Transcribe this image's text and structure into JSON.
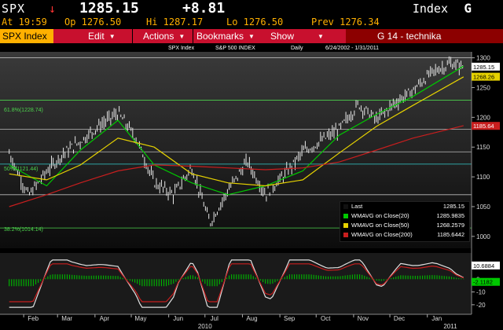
{
  "header": {
    "ticker": "SPX",
    "arrow": "↓",
    "last": "1285.15",
    "change": "+8.81",
    "index_label": "Index",
    "index_letter": "G",
    "time": "At 19:59",
    "open": "Op 1276.50",
    "high": "Hi 1287.17",
    "low": "Lo 1276.50",
    "prev": "Prev 1276.34"
  },
  "toolbar": {
    "security": "SPX Index",
    "edit": "Edit",
    "actions": "Actions",
    "bookmarks": "Bookmarks",
    "show": "Show",
    "title": "G 14 - technika"
  },
  "chart_header": {
    "name": "SPX Index",
    "desc": "S&P 500 INDEX",
    "freq": "Daily",
    "range": "6/24/2002 - 1/31/2011"
  },
  "fib": {
    "f618": "61.8%(1228.74)",
    "f50": "50%(1121.44)",
    "f382": "38.2%(1014.14)"
  },
  "legend": {
    "last_label": "Last",
    "last_value": "1285.15",
    "w20_label": "WMAVG on Close(20)",
    "w20_value": "1285.9835",
    "w50_label": "WMAVG on Close(50)",
    "w50_value": "1268.2579",
    "w200_label": "WMAVG on Close(200)",
    "w200_value": "1185.6442"
  },
  "colors": {
    "ma20": "#00c800",
    "ma50": "#e6d200",
    "ma200": "#c81e1e",
    "toolbar": "#c8102e",
    "accent": "#ffb000"
  },
  "chart_data": {
    "type": "line",
    "series": [
      {
        "name": "Last",
        "x": [
          "2010-01-20",
          "2010-02-05",
          "2010-02-20",
          "2010-03-05",
          "2010-03-20",
          "2010-04-05",
          "2010-04-20",
          "2010-05-05",
          "2010-05-20",
          "2010-06-05",
          "2010-06-20",
          "2010-07-05",
          "2010-07-20",
          "2010-08-05",
          "2010-08-20",
          "2010-09-05",
          "2010-09-20",
          "2010-10-05",
          "2010-10-20",
          "2010-11-05",
          "2010-11-20",
          "2010-12-05",
          "2010-12-20",
          "2011-01-05",
          "2011-01-20",
          "2011-01-31"
        ],
        "values": [
          1140,
          1068,
          1109,
          1138,
          1160,
          1187,
          1207,
          1165,
          1090,
          1070,
          1116,
          1022,
          1077,
          1126,
          1071,
          1104,
          1142,
          1160,
          1180,
          1222,
          1196,
          1224,
          1245,
          1276,
          1290,
          1285
        ]
      },
      {
        "name": "WMAVG on Close(20)",
        "x": [
          "2010-01-20",
          "2010-02-20",
          "2010-03-20",
          "2010-04-20",
          "2010-05-20",
          "2010-06-20",
          "2010-07-20",
          "2010-08-20",
          "2010-09-20",
          "2010-10-20",
          "2010-11-20",
          "2010-12-20",
          "2011-01-31"
        ],
        "values": [
          1120,
          1085,
          1145,
          1195,
          1120,
          1090,
          1070,
          1085,
          1110,
          1170,
          1205,
          1235,
          1286
        ]
      },
      {
        "name": "WMAVG on Close(50)",
        "x": [
          "2010-01-20",
          "2010-02-20",
          "2010-03-20",
          "2010-04-20",
          "2010-05-20",
          "2010-06-20",
          "2010-07-20",
          "2010-08-20",
          "2010-09-20",
          "2010-10-20",
          "2010-11-20",
          "2010-12-20",
          "2011-01-31"
        ],
        "values": [
          1105,
          1095,
          1120,
          1165,
          1150,
          1105,
          1090,
          1085,
          1095,
          1140,
          1185,
          1220,
          1268
        ]
      },
      {
        "name": "WMAVG on Close(200)",
        "x": [
          "2010-01-20",
          "2010-02-20",
          "2010-03-20",
          "2010-04-20",
          "2010-05-20",
          "2010-06-20",
          "2010-07-20",
          "2010-08-20",
          "2010-09-20",
          "2010-10-20",
          "2010-11-20",
          "2010-12-20",
          "2011-01-31"
        ],
        "values": [
          1050,
          1070,
          1090,
          1110,
          1120,
          1118,
          1115,
          1112,
          1115,
          1125,
          1145,
          1165,
          1186
        ]
      }
    ],
    "ylim": [
      980,
      1310
    ],
    "y_ticks": [
      1000,
      1050,
      1100,
      1150,
      1200,
      1250,
      1300
    ],
    "x_ticks": [
      "Feb",
      "Mar",
      "Apr",
      "May",
      "Jun",
      "Jul",
      "Aug",
      "Sep",
      "Oct",
      "Nov",
      "Dec",
      "Jan"
    ],
    "x_years": [
      "2010",
      "2011"
    ],
    "hlines": [
      1300,
      1228.74,
      1180,
      1142,
      1121.44,
      1070,
      1014.14
    ],
    "osc": {
      "name": "oscillator",
      "last_value": "10.6884",
      "last_value2": "-2.1182",
      "y_ticks": [
        10,
        0,
        -10,
        -20
      ],
      "ylim": [
        -25,
        18
      ]
    }
  }
}
